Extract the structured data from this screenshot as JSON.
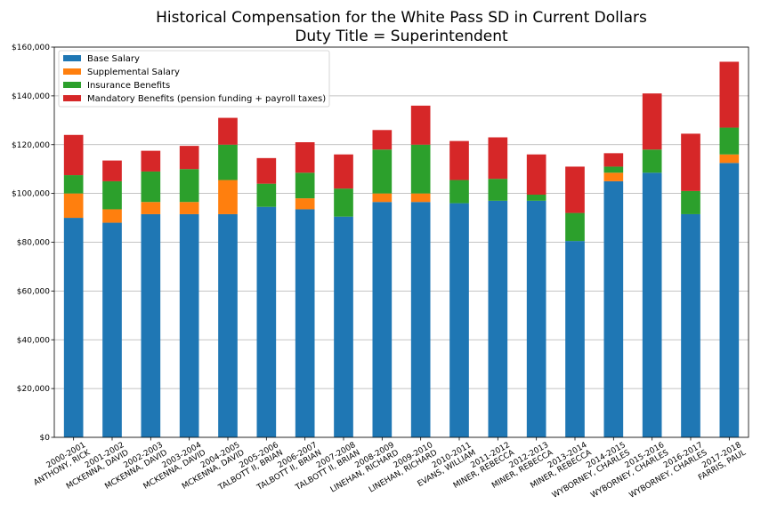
{
  "chart_data": {
    "type": "bar",
    "stacked": true,
    "title": [
      "Historical Compensation for the White Pass SD in Current Dollars",
      "Duty Title = Superintendent"
    ],
    "xlabel": "",
    "ylabel": "",
    "ylim": [
      0,
      160000
    ],
    "yticks": [
      "$0",
      "$20,000",
      "$40,000",
      "$60,000",
      "$80,000",
      "$100,000",
      "$120,000",
      "$140,000",
      "$160,000"
    ],
    "ytick_values": [
      0,
      20000,
      40000,
      60000,
      80000,
      100000,
      120000,
      140000,
      160000
    ],
    "grid": true,
    "legend_position": "top-left",
    "categories": [
      [
        "2000-2001",
        "ANTHONY, RICK"
      ],
      [
        "2001-2002",
        "MCKENNA, DAVID"
      ],
      [
        "2002-2003",
        "MCKENNA, DAVID"
      ],
      [
        "2003-2004",
        "MCKENNA, DAVID"
      ],
      [
        "2004-2005",
        "MCKENNA, DAVID"
      ],
      [
        "2005-2006",
        "TALBOTT  II, BRIAN"
      ],
      [
        "2006-2007",
        "TALBOTT  II, BRIAN"
      ],
      [
        "2007-2008",
        "TALBOTT  II, BRIAN"
      ],
      [
        "2008-2009",
        "LINEHAN, RICHARD"
      ],
      [
        "2009-2010",
        "LINEHAN, RICHARD"
      ],
      [
        "2010-2011",
        "EVANS, WILLIAM"
      ],
      [
        "2011-2012",
        "MINER, REBECCA"
      ],
      [
        "2012-2013",
        "MINER, REBECCA"
      ],
      [
        "2013-2014",
        "MINER, REBECCA"
      ],
      [
        "2014-2015",
        "WYBORNEY, CHARLES"
      ],
      [
        "2015-2016",
        "WYBORNEY, CHARLES"
      ],
      [
        "2016-2017",
        "WYBORNEY, CHARLES"
      ],
      [
        "2017-2018",
        "FARRIS, PAUL"
      ]
    ],
    "series": [
      {
        "name": "Base Salary",
        "color": "#1f77b4",
        "values": [
          90000,
          88000,
          91500,
          91500,
          91500,
          94500,
          93500,
          90500,
          96500,
          96500,
          96000,
          97000,
          97000,
          80500,
          105000,
          108500,
          91500,
          112500
        ]
      },
      {
        "name": "Supplemental Salary",
        "color": "#ff7f0e",
        "values": [
          10000,
          5500,
          5000,
          5000,
          14000,
          0,
          4500,
          0,
          3500,
          3500,
          0,
          0,
          0,
          0,
          3500,
          0,
          0,
          3500
        ]
      },
      {
        "name": "Insurance Benefits",
        "color": "#2ca02c",
        "values": [
          7500,
          11500,
          12500,
          13500,
          14500,
          9500,
          10500,
          11500,
          18000,
          20000,
          9500,
          9000,
          2500,
          11500,
          2500,
          9500,
          9500,
          11000
        ]
      },
      {
        "name": "Mandatory Benefits (pension funding + payroll taxes)",
        "color": "#d62728",
        "values": [
          16500,
          8500,
          8500,
          9500,
          11000,
          10500,
          12500,
          14000,
          8000,
          16000,
          16000,
          17000,
          16500,
          19000,
          5500,
          23000,
          23500,
          27000
        ]
      }
    ]
  }
}
